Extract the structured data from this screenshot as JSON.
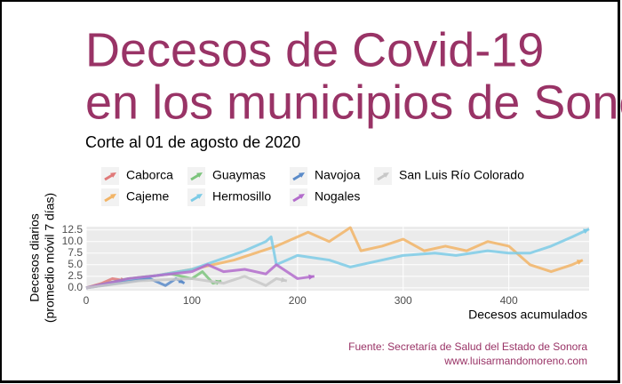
{
  "chart_data": {
    "type": "line",
    "title": [
      "Decesos de Covid-19",
      "en los municipios de Sonora"
    ],
    "subtitle": "Corte al 01 de agosto de 2020",
    "x_label": "Decesos acumulados",
    "y_label": [
      "Decesos diarios",
      "(promedio móvil 7 días)"
    ],
    "source": [
      "Fuente: Secretaría de Salud del Estado de Sonora",
      "www.luisarmandomoreno.com"
    ],
    "xlim": [
      0,
      476
    ],
    "ylim": [
      -0.6,
      13.2
    ],
    "xticks": [
      0,
      100,
      200,
      300,
      400
    ],
    "yticks": [
      {
        "value": 0,
        "label": "0.0"
      },
      2.5,
      {
        "value": 5,
        "label": "5.0"
      },
      7.5,
      {
        "value": 10,
        "label": "10.0"
      },
      12.5
    ],
    "grid": true,
    "series": [
      {
        "name": "Caborca",
        "color": "#e07a7a",
        "x": [
          0,
          15,
          25,
          38
        ],
        "values": [
          0,
          1,
          2,
          1.5
        ]
      },
      {
        "name": "Cajeme",
        "color": "#f2b466",
        "x": [
          0,
          50,
          100,
          140,
          180,
          210,
          230,
          250,
          260,
          280,
          300,
          320,
          340,
          360,
          380,
          400,
          420,
          440,
          460,
          470
        ],
        "values": [
          0,
          2,
          4,
          6,
          9,
          12,
          10,
          13,
          8,
          9,
          10.5,
          8,
          9,
          8,
          10,
          9,
          5,
          3.5,
          5,
          6
        ]
      },
      {
        "name": "Guaymas",
        "color": "#7cc47c",
        "x": [
          0,
          40,
          80,
          100,
          110,
          120,
          128
        ],
        "values": [
          0,
          2,
          3,
          2,
          3.5,
          1,
          1.5
        ]
      },
      {
        "name": "Hermosillo",
        "color": "#7ccbe6",
        "x": [
          0,
          50,
          100,
          150,
          170,
          175,
          180,
          200,
          230,
          250,
          270,
          300,
          330,
          350,
          380,
          400,
          420,
          440,
          460,
          476
        ],
        "values": [
          0,
          2,
          4,
          8,
          10,
          11,
          5,
          7,
          6,
          4.5,
          5.5,
          7,
          7.5,
          7,
          8,
          7.5,
          7.5,
          9,
          11,
          12.7
        ]
      },
      {
        "name": "Navojoa",
        "color": "#5b8bc9",
        "x": [
          0,
          30,
          60,
          75,
          85,
          93
        ],
        "values": [
          0,
          1,
          2,
          0.5,
          2,
          1
        ]
      },
      {
        "name": "Nogales",
        "color": "#b36ccc",
        "x": [
          0,
          40,
          80,
          100,
          115,
          130,
          150,
          170,
          180,
          190,
          200,
          216
        ],
        "values": [
          0,
          2,
          3,
          3.5,
          5,
          3.5,
          4,
          3,
          5,
          3.5,
          2,
          2.5
        ]
      },
      {
        "name": "San Luis Río Colorado",
        "color": "#c8c8c8",
        "x": [
          0,
          50,
          100,
          130,
          150,
          170,
          180,
          190
        ],
        "values": [
          0,
          1.5,
          2,
          1,
          2.5,
          0.5,
          2,
          1.5
        ]
      }
    ]
  }
}
